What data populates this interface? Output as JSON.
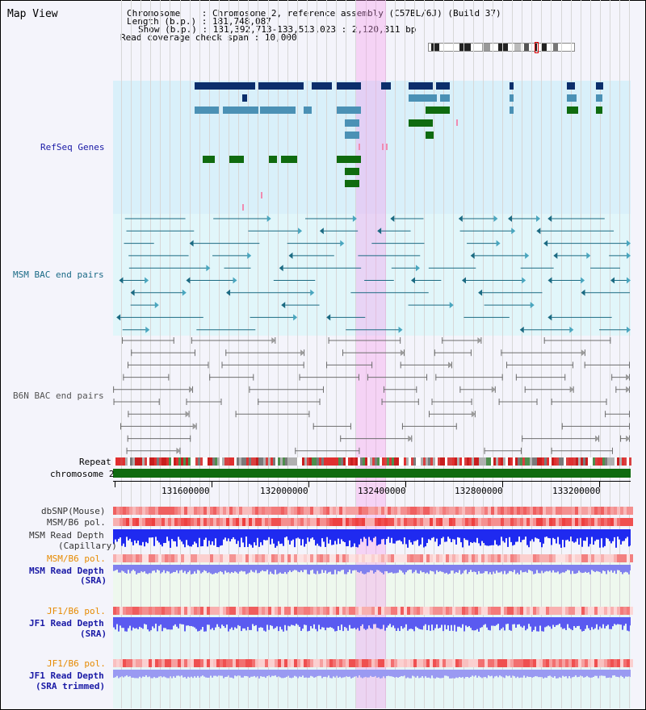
{
  "title": "Map View",
  "header": {
    "chromosome_label": "Chromosome",
    "chromosome_value": "Chromosome 2, reference assembly (C57BL/6J) (Build 37)",
    "length_label": "Length (b.p.)",
    "length_value": "181,748,087",
    "show_label": "Show (b.p.)",
    "show_value": "131,392,713-133,513,023 : 2,120,311 bp",
    "coverage_label": "Read coverage check span",
    "coverage_value": "10,000"
  },
  "tracks": {
    "refseq": "RefSeq Genes",
    "msm_bac": "MSM BAC end pairs",
    "b6n_bac": "B6N BAC end pairs",
    "repeat": "Repeat",
    "chromosome": "chromosome 2",
    "dbsnp": "dbSNP(Mouse)",
    "msm_b6_pol": "MSM/B6 pol.",
    "msm_read_depth": "MSM Read Depth",
    "capillary": "(Capillary)",
    "msm_b6_pol_2": "MSM/B6 pol.",
    "msm_read_depth_sra": "MSM Read Depth",
    "sra": "(SRA)",
    "jf1_b6_pol": "JF1/B6 pol.",
    "jf1_read_depth": "JF1 Read Depth",
    "sra2": "(SRA)",
    "jf1_b6_pol_2": "JF1/B6 pol.",
    "jf1_read_depth_trim": "JF1 Read Depth",
    "sra_trimmed": "(SRA trimmed)"
  },
  "axis": {
    "ticks": [
      "131600000",
      "132000000",
      "132400000",
      "132800000",
      "133200000"
    ]
  },
  "colors": {
    "refseq_bg": "#d9f0fa",
    "msm_bg": "#e1f6fa",
    "b6n_bg": "#f4f4fb",
    "selection": "#f5c3f0",
    "gene_dark": "#0b2e6b",
    "gene_mid": "#4b91b5",
    "gene_green": "#0f6b0f",
    "msm_line": "#1b6a82",
    "b6n_line": "#6e6e6e",
    "label_blue": "#1a1aa6",
    "label_teal": "#1a6a86",
    "label_gray": "#555555",
    "label_orange": "#e68a00"
  }
}
